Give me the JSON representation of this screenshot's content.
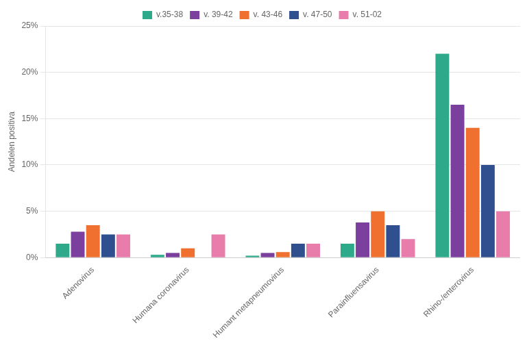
{
  "chart_data": {
    "type": "bar",
    "ylabel": "Andelen positiva",
    "categories": [
      "Adenovirus",
      "Humana coronavirus",
      "Humant metapneumovirus",
      "Parainfluensavirus",
      "Rhino-/enterovirus"
    ],
    "series": [
      {
        "name": "v.35-38",
        "color": "#2eaa8a",
        "values": [
          0.015,
          0.003,
          0.002,
          0.015,
          0.22
        ]
      },
      {
        "name": "v. 39-42",
        "color": "#7b3f9e",
        "values": [
          0.028,
          0.005,
          0.005,
          0.038,
          0.165
        ]
      },
      {
        "name": "v. 43-46",
        "color": "#f07030",
        "values": [
          0.035,
          0.01,
          0.006,
          0.05,
          0.14
        ]
      },
      {
        "name": "v. 47-50",
        "color": "#2f4f8f",
        "values": [
          0.025,
          0.0,
          0.015,
          0.035,
          0.1
        ]
      },
      {
        "name": "v. 51-02",
        "color": "#e87caa",
        "values": [
          0.025,
          0.025,
          0.015,
          0.02,
          0.05
        ]
      }
    ],
    "ylim": [
      0,
      0.25
    ],
    "yticks": [
      {
        "value": 0.0,
        "label": "0%"
      },
      {
        "value": 0.05,
        "label": "5%"
      },
      {
        "value": 0.1,
        "label": "10%"
      },
      {
        "value": 0.15,
        "label": "15%"
      },
      {
        "value": 0.2,
        "label": "20%"
      },
      {
        "value": 0.25,
        "label": "25%"
      }
    ],
    "grid": true,
    "legend": "top"
  }
}
